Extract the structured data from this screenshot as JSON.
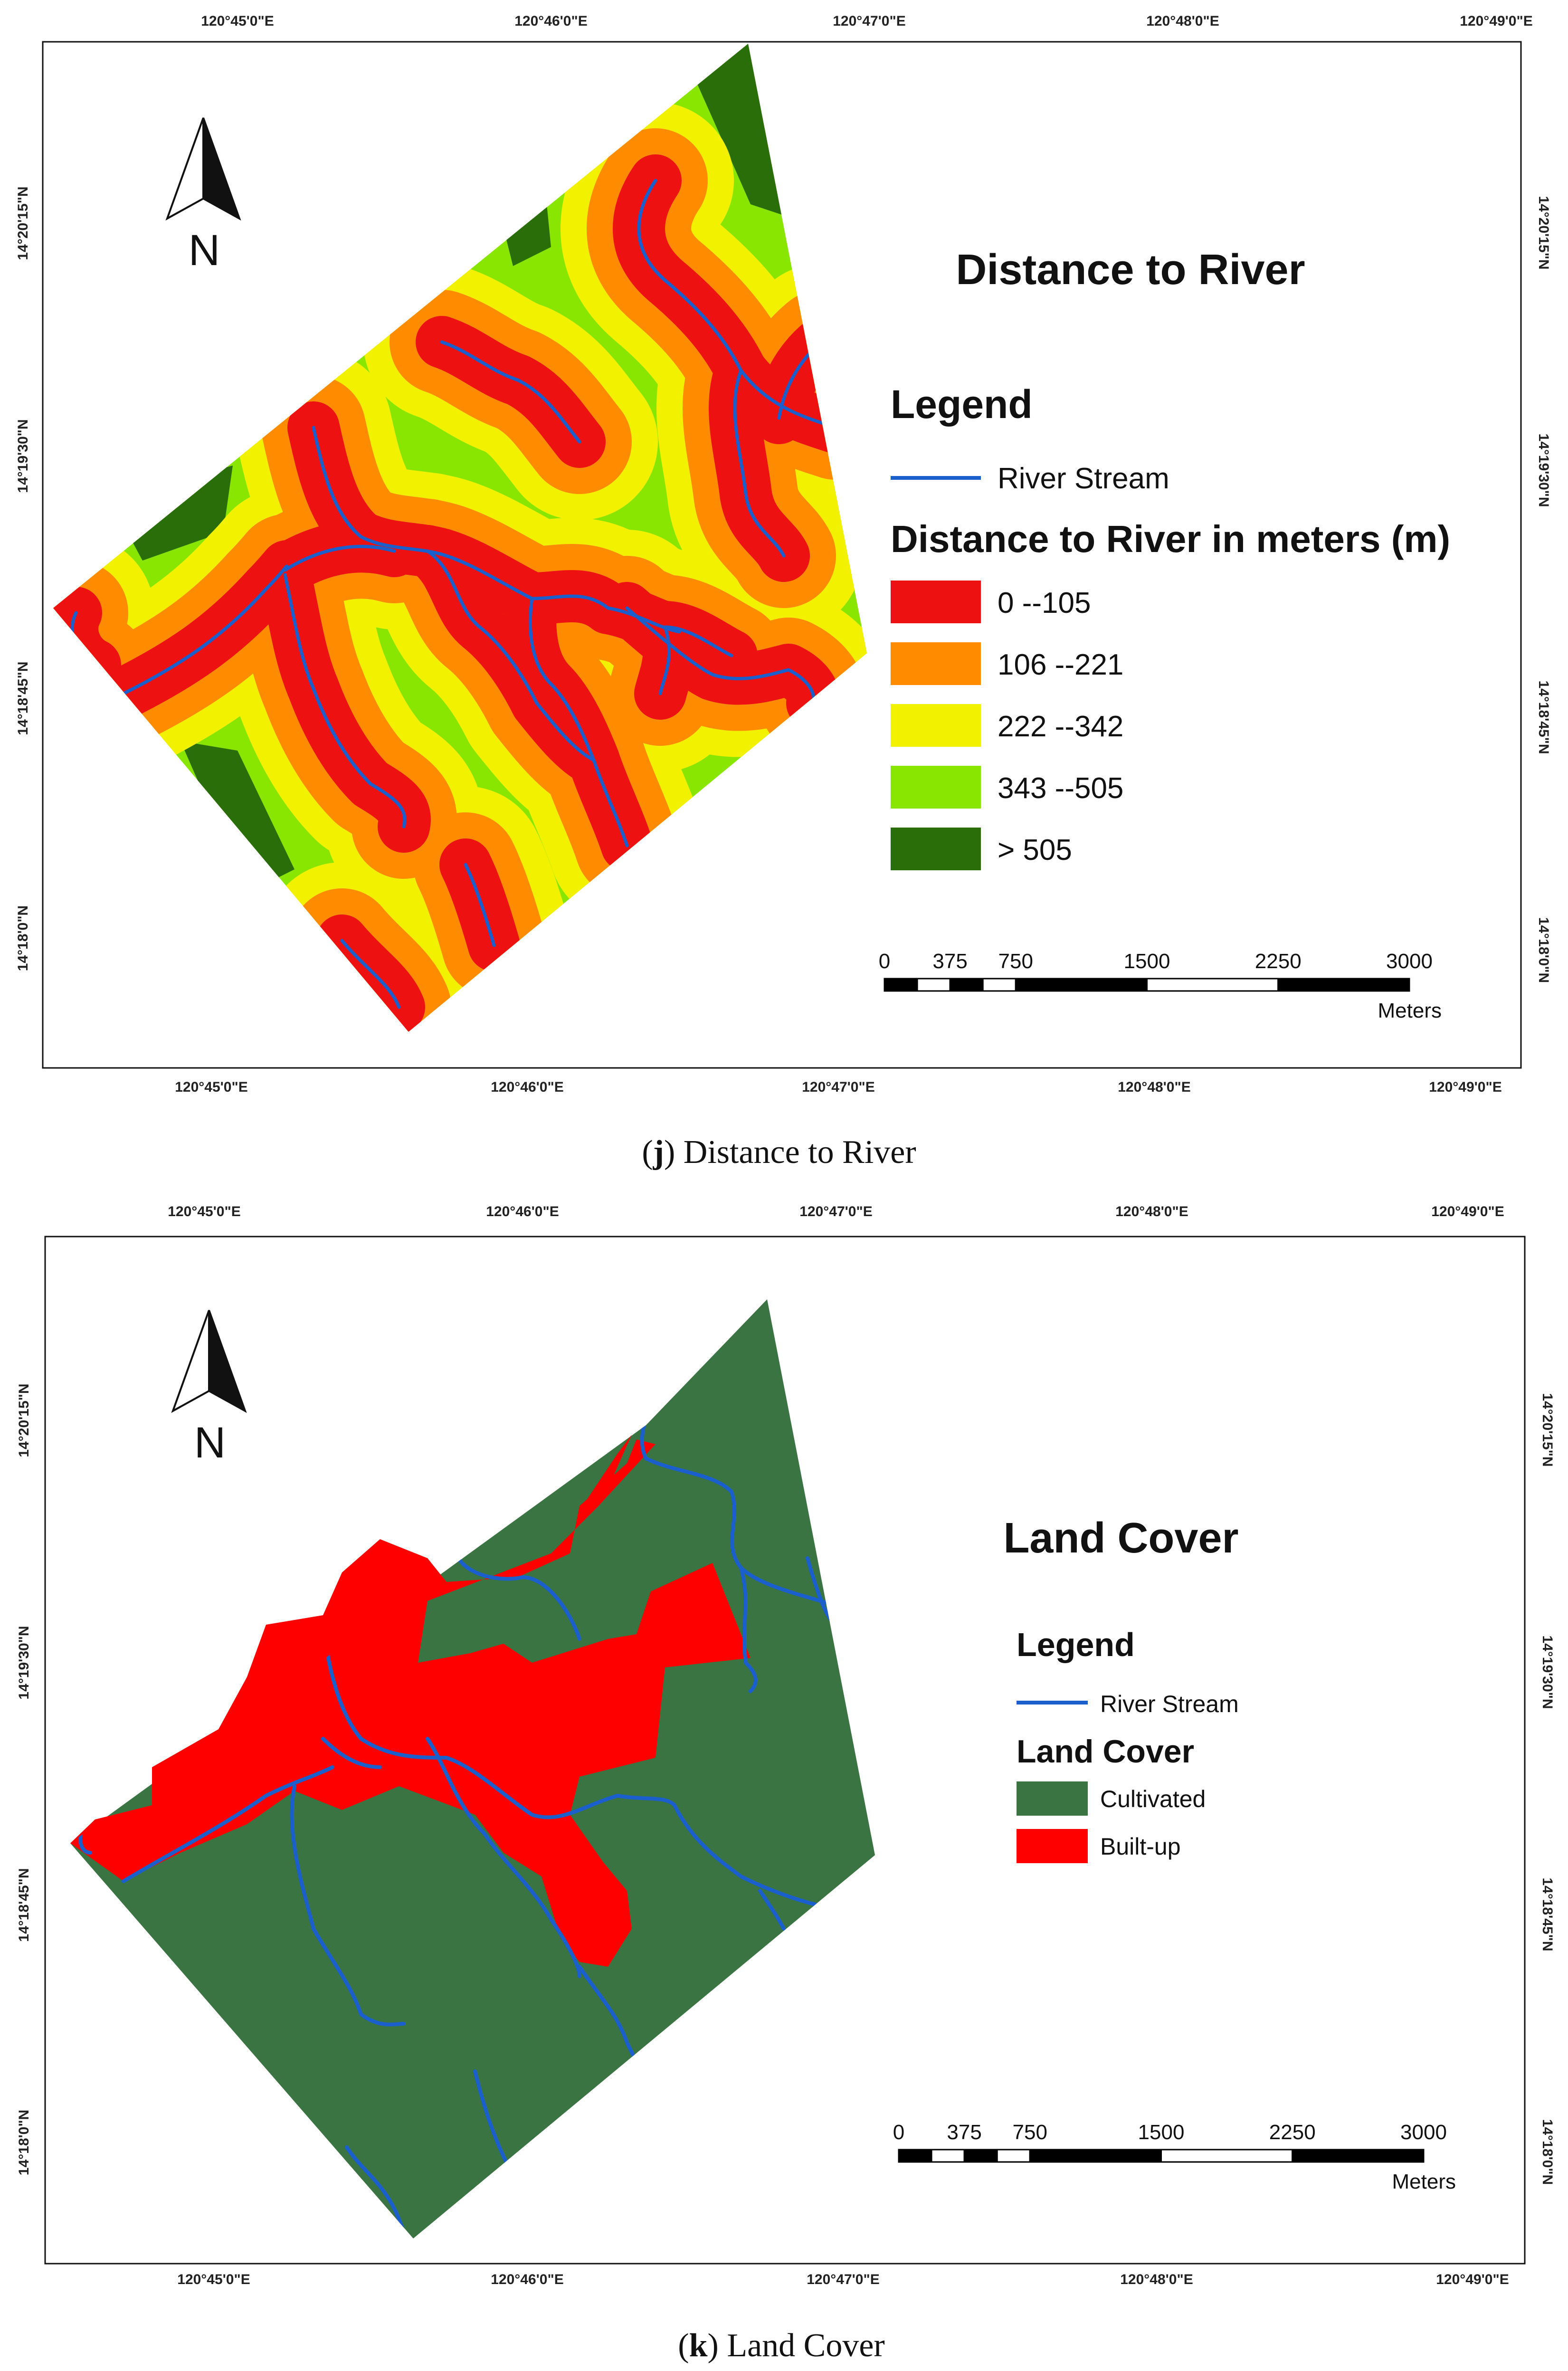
{
  "map_j": {
    "title": "Distance to River",
    "legend_heading": "Legend",
    "river_label": "River Stream",
    "class_heading": "Distance to River in meters (m)",
    "classes": [
      {
        "label": "0 --105",
        "color": "#ee1111"
      },
      {
        "label": "106 --221",
        "color": "#ff8c00"
      },
      {
        "label": "222 --342",
        "color": "#f2f200"
      },
      {
        "label": "343 --505",
        "color": "#88e600"
      },
      {
        "label": "> 505",
        "color": "#2a6e0a"
      }
    ],
    "caption_letter": "j",
    "caption_text": "Distance to River"
  },
  "map_k": {
    "title": "Land Cover",
    "legend_heading": "Legend",
    "river_label": "River Stream",
    "class_heading": "Land Cover",
    "classes": [
      {
        "label": "Cultivated",
        "color": "#3b7443"
      },
      {
        "label": "Built-up",
        "color": "#ff0000"
      }
    ],
    "caption_letter": "k",
    "caption_text": "Land Cover"
  },
  "graticule": {
    "longitudes": [
      "120°45'0\"E",
      "120°46'0\"E",
      "120°47'0\"E",
      "120°48'0\"E",
      "120°49'0\"E"
    ],
    "latitudes": [
      "14°20'15\"N",
      "14°19'30\"N",
      "14°18'45\"N",
      "14°18'0\"N"
    ]
  },
  "scalebar": {
    "ticks": [
      "0",
      "375",
      "750",
      "1500",
      "2250",
      "3000"
    ],
    "unit": "Meters"
  },
  "north_label": "N",
  "colors": {
    "river": "#1a5fcc"
  }
}
